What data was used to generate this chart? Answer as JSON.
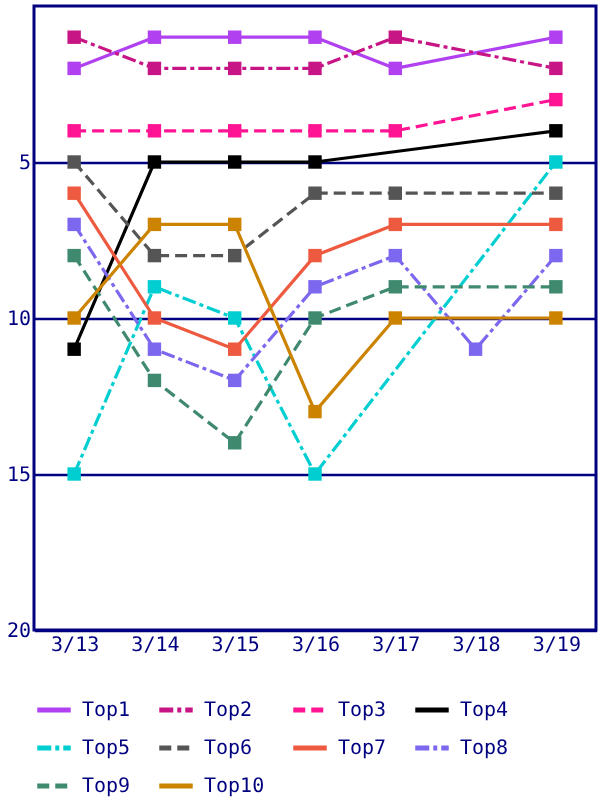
{
  "chart_data": {
    "type": "line",
    "categories": [
      "3/13",
      "3/14",
      "3/15",
      "3/16",
      "3/17",
      "3/18",
      "3/19"
    ],
    "series": [
      {
        "name": "Top1",
        "color": "#b040f0",
        "line_style": "solid",
        "values": [
          2,
          1,
          1,
          1,
          2,
          null,
          1
        ]
      },
      {
        "name": "Top2",
        "color": "#c71585",
        "line_style": "dashdot",
        "values": [
          1,
          2,
          2,
          2,
          1,
          null,
          2
        ]
      },
      {
        "name": "Top3",
        "color": "#ff1493",
        "line_style": "dashed",
        "values": [
          4,
          4,
          4,
          4,
          4,
          null,
          3
        ]
      },
      {
        "name": "Top4",
        "color": "#000000",
        "line_style": "solid",
        "values": [
          11,
          5,
          5,
          5,
          null,
          null,
          4
        ]
      },
      {
        "name": "Top5",
        "color": "#00ced1",
        "line_style": "dashdot",
        "values": [
          15,
          9,
          10,
          15,
          null,
          null,
          5
        ]
      },
      {
        "name": "Top6",
        "color": "#555555",
        "line_style": "dashed",
        "values": [
          5,
          8,
          8,
          6,
          6,
          null,
          6
        ]
      },
      {
        "name": "Top7",
        "color": "#ee5a40",
        "line_style": "solid",
        "values": [
          6,
          10,
          11,
          8,
          7,
          null,
          7
        ]
      },
      {
        "name": "Top8",
        "color": "#7b68ee",
        "line_style": "dashdot",
        "values": [
          7,
          11,
          12,
          9,
          8,
          11,
          8
        ]
      },
      {
        "name": "Top9",
        "color": "#3f8a6e",
        "line_style": "dashed",
        "values": [
          8,
          12,
          14,
          10,
          9,
          null,
          9
        ]
      },
      {
        "name": "Top10",
        "color": "#cc8400",
        "line_style": "solid",
        "values": [
          10,
          7,
          7,
          13,
          10,
          null,
          10
        ]
      }
    ],
    "ylim": [
      20,
      0
    ],
    "yticks": [
      5,
      10,
      15,
      20
    ],
    "grid": "y",
    "legend": "bottom",
    "marker": "square"
  }
}
